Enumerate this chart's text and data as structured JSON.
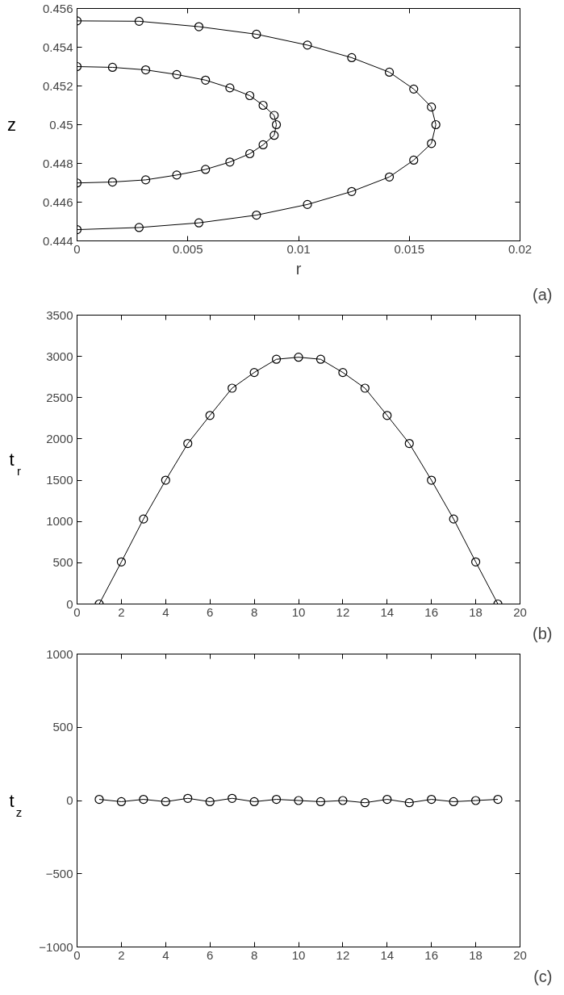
{
  "chart_data": [
    {
      "type": "line",
      "xlabel": "r",
      "ylabel": "z",
      "marker": "circle",
      "line_style": "solid",
      "grid": false,
      "annotations": [
        "(a)"
      ],
      "xlim": [
        0,
        0.02
      ],
      "xticks": [
        0,
        0.005,
        0.01,
        0.015,
        0.02
      ],
      "ylim": [
        0.444,
        0.456
      ],
      "yticks": [
        0.444,
        0.446,
        0.448,
        0.45,
        0.452,
        0.454,
        0.456
      ],
      "series": [
        {
          "color": "#000000",
          "x": [
            0,
            0.0028,
            0.0055,
            0.0081,
            0.0104,
            0.0124,
            0.0141,
            0.0152,
            0.016,
            0.0162,
            0.016,
            0.0152,
            0.0141,
            0.0124,
            0.0104,
            0.0081,
            0.0055,
            0.0028,
            0
          ],
          "values": [
            0.45536,
            0.45534,
            0.45506,
            0.45467,
            0.45411,
            0.45346,
            0.45271,
            0.45184,
            0.45091,
            0.45,
            0.44903,
            0.44817,
            0.4473,
            0.44655,
            0.44588,
            0.44533,
            0.44493,
            0.44469,
            0.44458
          ]
        },
        {
          "color": "#000000",
          "x": [
            0,
            0.0016,
            0.0031,
            0.0045,
            0.0058,
            0.0069,
            0.0078,
            0.0084,
            0.0089,
            0.009,
            0.0089,
            0.0084,
            0.0078,
            0.0069,
            0.0058,
            0.0045,
            0.0031,
            0.0016,
            0
          ],
          "values": [
            0.453,
            0.45296,
            0.45283,
            0.45259,
            0.4523,
            0.4519,
            0.4515,
            0.451,
            0.45048,
            0.45,
            0.44945,
            0.44896,
            0.4485,
            0.44807,
            0.44769,
            0.4474,
            0.44715,
            0.44704,
            0.44699
          ]
        }
      ]
    },
    {
      "type": "line",
      "ylabel": "t$_{r}$",
      "marker": "circle",
      "line_style": "solid",
      "grid": false,
      "annotations": [
        "(b)"
      ],
      "xlim": [
        0,
        20
      ],
      "xticks": [
        0,
        2,
        4,
        6,
        8,
        10,
        12,
        14,
        16,
        18,
        20
      ],
      "ylim": [
        0,
        3500
      ],
      "yticks": [
        0,
        500,
        1000,
        1500,
        2000,
        2500,
        3000,
        3500
      ],
      "series": [
        {
          "color": "#000000",
          "x": [
            1,
            2,
            3,
            4,
            5,
            6,
            7,
            8,
            9,
            10,
            11,
            12,
            13,
            14,
            15,
            16,
            17,
            18,
            19
          ],
          "values": [
            0,
            510,
            1030,
            1500,
            1945,
            2285,
            2615,
            2805,
            2965,
            2990,
            2965,
            2805,
            2615,
            2285,
            1945,
            1500,
            1030,
            510,
            0
          ]
        }
      ]
    },
    {
      "type": "line",
      "ylabel": "t$_{z}$",
      "marker": "circle",
      "line_style": "solid",
      "grid": false,
      "annotations": [
        "(c)"
      ],
      "xlim": [
        0,
        20
      ],
      "xticks": [
        0,
        2,
        4,
        6,
        8,
        10,
        12,
        14,
        16,
        18,
        20
      ],
      "ylim": [
        -1000,
        1000
      ],
      "yticks": [
        -1000,
        -500,
        0,
        500,
        1000
      ],
      "series": [
        {
          "color": "#000000",
          "x": [
            1,
            2,
            3,
            4,
            5,
            6,
            7,
            8,
            9,
            10,
            11,
            12,
            13,
            14,
            15,
            16,
            17,
            18,
            19
          ],
          "values": [
            8,
            -8,
            8,
            -8,
            15,
            -8,
            15,
            -8,
            8,
            0,
            -8,
            0,
            -15,
            8,
            -15,
            8,
            -8,
            0,
            8
          ]
        }
      ]
    }
  ]
}
